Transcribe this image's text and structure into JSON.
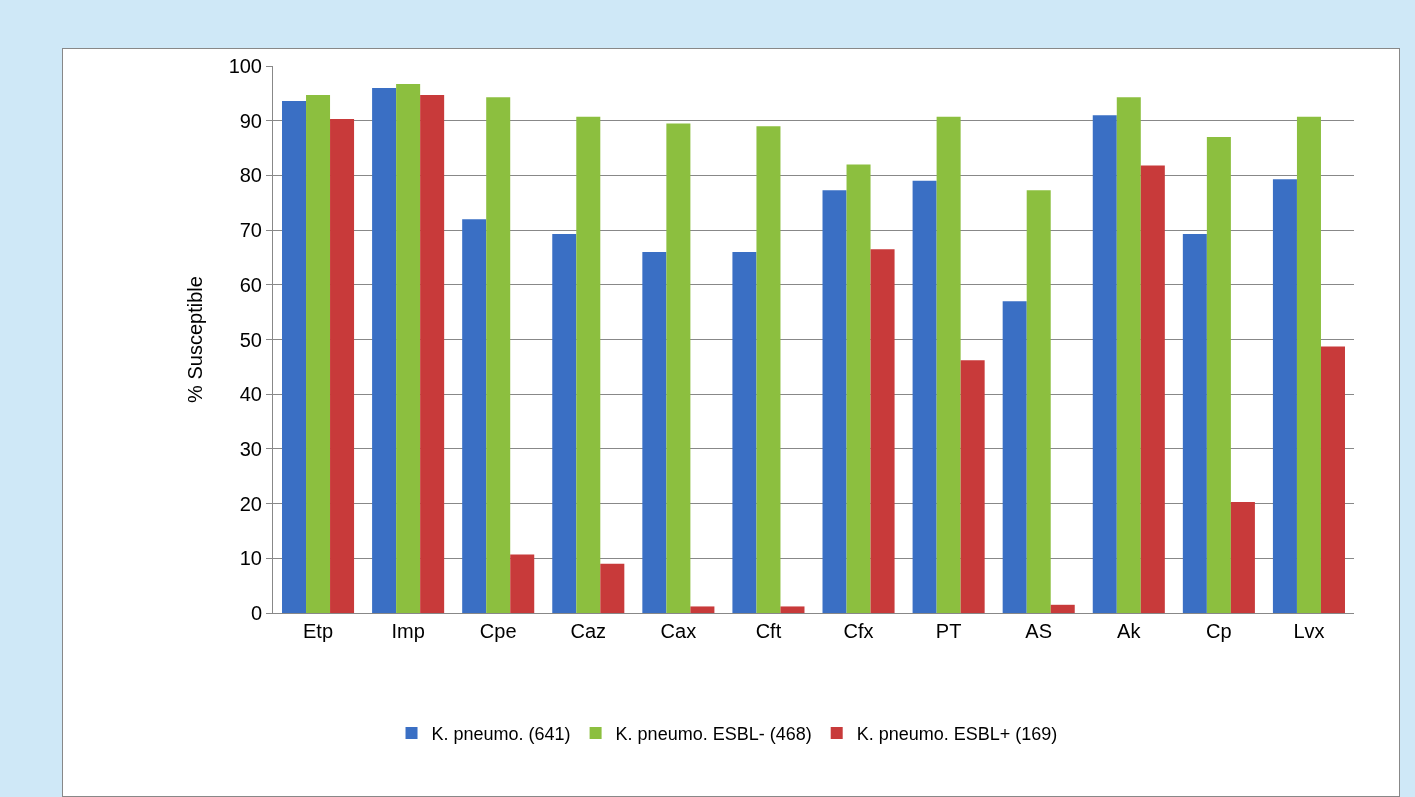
{
  "chart_data": {
    "type": "bar",
    "ylabel": "% Susceptible",
    "categories": [
      "Etp",
      "Imp",
      "Cpe",
      "Caz",
      "Cax",
      "Cft",
      "Cfx",
      "PT",
      "AS",
      "Ak",
      "Cp",
      "Lvx"
    ],
    "series": [
      {
        "name": "K. pneumo. (641)",
        "color": "#3a6fc4",
        "values": [
          93.6,
          96,
          72,
          69.3,
          66,
          66,
          77.3,
          79,
          57,
          91,
          69.3,
          79.3
        ]
      },
      {
        "name": "K. pneumo. ESBL- (468)",
        "color": "#8cbf3f",
        "values": [
          94.7,
          96.7,
          94.3,
          90.7,
          89.5,
          89,
          82,
          90.7,
          77.3,
          94.3,
          87,
          90.7
        ]
      },
      {
        "name": "K. pneumo. ESBL+ (169)",
        "color": "#c83a3a",
        "values": [
          90.3,
          94.7,
          10.7,
          9,
          1.2,
          1.2,
          66.5,
          46.2,
          1.5,
          81.8,
          20.3,
          48.7
        ]
      }
    ],
    "ylim": [
      0,
      100
    ],
    "yticks": [
      0,
      10,
      20,
      30,
      40,
      50,
      60,
      70,
      80,
      90,
      100
    ],
    "grid": "y",
    "legend": "bottom"
  }
}
